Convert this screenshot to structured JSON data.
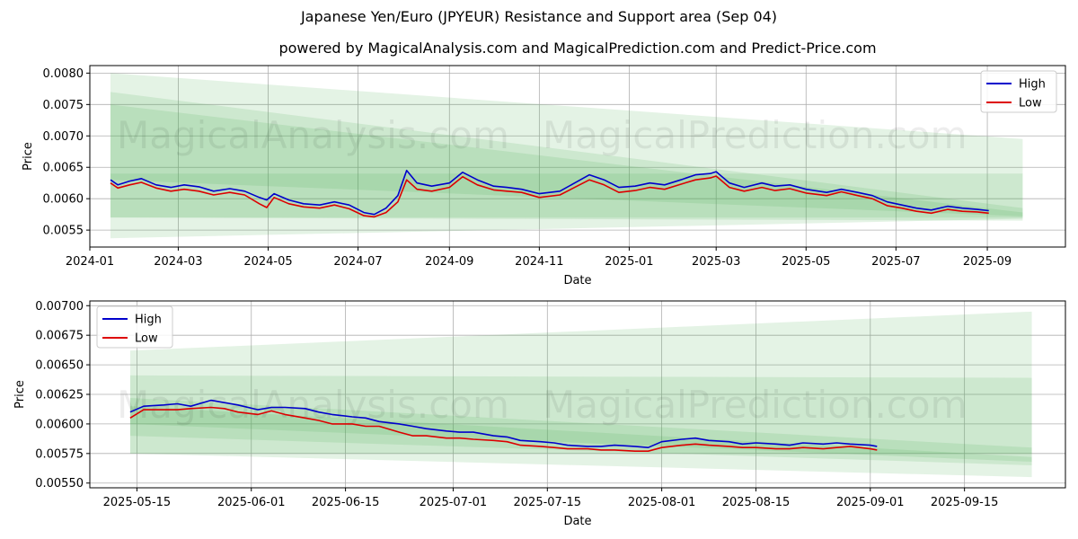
{
  "figure": {
    "title": "Japanese Yen/Euro (JPYEUR) Resistance and Support area (Sep 04)",
    "subtitle": "powered by MagicalAnalysis.com and MagicalPrediction.com and Predict-Price.com",
    "watermarks": [
      "MagicalAnalysis.com",
      "MagicalPrediction.com"
    ],
    "colors": {
      "high": "#0000cc",
      "low": "#dd0000",
      "band": "#4caf50",
      "grid": "#b0b0b0"
    }
  },
  "chart_data": [
    {
      "type": "line",
      "xlabel": "Date",
      "ylabel": "Price",
      "xlim": [
        "2024-01-01",
        "2025-10-24"
      ],
      "ylim": [
        0.00523,
        0.00812
      ],
      "xticks": [
        "2024-01",
        "2024-03",
        "2024-05",
        "2024-07",
        "2024-09",
        "2024-11",
        "2025-01",
        "2025-03",
        "2025-05",
        "2025-07",
        "2025-09"
      ],
      "yticks": [
        "0.0055",
        "0.0060",
        "0.0065",
        "0.0070",
        "0.0075",
        "0.0080"
      ],
      "legend": {
        "position": "top-right",
        "entries": [
          "High",
          "Low"
        ]
      },
      "grid": true,
      "bands": [
        {
          "x": [
            "2024-01-15",
            "2025-09-25"
          ],
          "top": [
            0.008,
            0.00695
          ],
          "bottom": [
            0.00537,
            0.00568
          ]
        },
        {
          "x": [
            "2024-01-15",
            "2025-09-25"
          ],
          "top": [
            0.0077,
            0.00585
          ],
          "bottom": [
            0.0057,
            0.00565
          ]
        },
        {
          "x": [
            "2024-01-15",
            "2025-09-25"
          ],
          "top": [
            0.0075,
            0.00578
          ],
          "bottom": [
            0.0063,
            0.00572
          ]
        },
        {
          "x": [
            "2024-01-15",
            "2025-09-25"
          ],
          "top": [
            0.0064,
            0.0064
          ],
          "bottom": [
            0.0057,
            0.0057
          ]
        }
      ],
      "series": [
        {
          "name": "High",
          "x": [
            "2024-01-15",
            "2024-01-20",
            "2024-01-28",
            "2024-02-05",
            "2024-02-15",
            "2024-02-25",
            "2024-03-05",
            "2024-03-15",
            "2024-03-25",
            "2024-04-05",
            "2024-04-15",
            "2024-04-25",
            "2024-04-30",
            "2024-05-05",
            "2024-05-15",
            "2024-05-25",
            "2024-06-05",
            "2024-06-15",
            "2024-06-25",
            "2024-07-05",
            "2024-07-12",
            "2024-07-20",
            "2024-07-28",
            "2024-08-03",
            "2024-08-10",
            "2024-08-20",
            "2024-09-01",
            "2024-09-10",
            "2024-09-20",
            "2024-10-01",
            "2024-10-10",
            "2024-10-20",
            "2024-11-01",
            "2024-11-15",
            "2024-11-25",
            "2024-12-05",
            "2024-12-15",
            "2024-12-25",
            "2025-01-05",
            "2025-01-15",
            "2025-01-25",
            "2025-02-05",
            "2025-02-15",
            "2025-02-25",
            "2025-03-01",
            "2025-03-10",
            "2025-03-20",
            "2025-04-01",
            "2025-04-10",
            "2025-04-20",
            "2025-05-01",
            "2025-05-15",
            "2025-05-25",
            "2025-06-05",
            "2025-06-15",
            "2025-06-25",
            "2025-07-05",
            "2025-07-15",
            "2025-07-25",
            "2025-08-05",
            "2025-08-15",
            "2025-08-25",
            "2025-09-02"
          ],
          "values": [
            0.0063,
            0.00622,
            0.00628,
            0.00632,
            0.00622,
            0.00618,
            0.00622,
            0.00619,
            0.00612,
            0.00616,
            0.00612,
            0.00602,
            0.00598,
            0.00608,
            0.00598,
            0.00592,
            0.0059,
            0.00595,
            0.0059,
            0.00578,
            0.00575,
            0.00585,
            0.00605,
            0.00645,
            0.00625,
            0.0062,
            0.00625,
            0.00642,
            0.0063,
            0.0062,
            0.00618,
            0.00615,
            0.00608,
            0.00612,
            0.00625,
            0.00638,
            0.0063,
            0.00618,
            0.0062,
            0.00625,
            0.00622,
            0.0063,
            0.00638,
            0.0064,
            0.00643,
            0.00625,
            0.00618,
            0.00625,
            0.0062,
            0.00622,
            0.00615,
            0.0061,
            0.00615,
            0.0061,
            0.00605,
            0.00595,
            0.0059,
            0.00585,
            0.00582,
            0.00588,
            0.00585,
            0.00583,
            0.00581
          ]
        },
        {
          "name": "Low",
          "x": [
            "2024-01-15",
            "2024-01-20",
            "2024-01-28",
            "2024-02-05",
            "2024-02-15",
            "2024-02-25",
            "2024-03-05",
            "2024-03-15",
            "2024-03-25",
            "2024-04-05",
            "2024-04-15",
            "2024-04-25",
            "2024-04-30",
            "2024-05-05",
            "2024-05-15",
            "2024-05-25",
            "2024-06-05",
            "2024-06-15",
            "2024-06-25",
            "2024-07-05",
            "2024-07-12",
            "2024-07-20",
            "2024-07-28",
            "2024-08-03",
            "2024-08-10",
            "2024-08-20",
            "2024-09-01",
            "2024-09-10",
            "2024-09-20",
            "2024-10-01",
            "2024-10-10",
            "2024-10-20",
            "2024-11-01",
            "2024-11-15",
            "2024-11-25",
            "2024-12-05",
            "2024-12-15",
            "2024-12-25",
            "2025-01-05",
            "2025-01-15",
            "2025-01-25",
            "2025-02-05",
            "2025-02-15",
            "2025-02-25",
            "2025-03-01",
            "2025-03-10",
            "2025-03-20",
            "2025-04-01",
            "2025-04-10",
            "2025-04-20",
            "2025-05-01",
            "2025-05-15",
            "2025-05-25",
            "2025-06-05",
            "2025-06-15",
            "2025-06-25",
            "2025-07-05",
            "2025-07-15",
            "2025-07-25",
            "2025-08-05",
            "2025-08-15",
            "2025-08-25",
            "2025-09-02"
          ],
          "values": [
            0.00625,
            0.00617,
            0.00622,
            0.00626,
            0.00617,
            0.00612,
            0.00615,
            0.00612,
            0.00606,
            0.0061,
            0.00606,
            0.00592,
            0.00586,
            0.00602,
            0.00592,
            0.00587,
            0.00585,
            0.0059,
            0.00584,
            0.00573,
            0.00571,
            0.00578,
            0.00595,
            0.0063,
            0.00615,
            0.00612,
            0.00618,
            0.00635,
            0.00622,
            0.00614,
            0.00612,
            0.0061,
            0.00602,
            0.00606,
            0.00618,
            0.0063,
            0.00622,
            0.0061,
            0.00613,
            0.00618,
            0.00615,
            0.00623,
            0.0063,
            0.00633,
            0.00636,
            0.00618,
            0.00612,
            0.00618,
            0.00613,
            0.00616,
            0.00609,
            0.00605,
            0.00611,
            0.00605,
            0.006,
            0.00589,
            0.00585,
            0.0058,
            0.00577,
            0.00583,
            0.0058,
            0.00579,
            0.00577
          ]
        }
      ]
    },
    {
      "type": "line",
      "xlabel": "Date",
      "ylabel": "Price",
      "xlim": [
        "2025-05-08",
        "2025-09-30"
      ],
      "ylim": [
        0.00546,
        0.00704
      ],
      "xticks": [
        "2025-05-15",
        "2025-06-01",
        "2025-06-15",
        "2025-07-01",
        "2025-07-15",
        "2025-08-01",
        "2025-08-15",
        "2025-09-01",
        "2025-09-15"
      ],
      "yticks": [
        "0.00550",
        "0.00575",
        "0.00600",
        "0.00625",
        "0.00650",
        "0.00675",
        "0.00700"
      ],
      "legend": {
        "position": "top-left",
        "entries": [
          "High",
          "Low"
        ]
      },
      "grid": true,
      "bands": [
        {
          "x": [
            "2025-05-14",
            "2025-09-25"
          ],
          "top": [
            0.00662,
            0.00695
          ],
          "bottom": [
            0.00575,
            0.00555
          ]
        },
        {
          "x": [
            "2025-05-14",
            "2025-09-25"
          ],
          "top": [
            0.00641,
            0.00639
          ],
          "bottom": [
            0.00575,
            0.00575
          ]
        },
        {
          "x": [
            "2025-05-14",
            "2025-09-25"
          ],
          "top": [
            0.00622,
            0.0058
          ],
          "bottom": [
            0.0059,
            0.00565
          ]
        },
        {
          "x": [
            "2025-05-14",
            "2025-09-25"
          ],
          "top": [
            0.00615,
            0.00572
          ],
          "bottom": [
            0.006,
            0.00568
          ]
        }
      ],
      "series": [
        {
          "name": "High",
          "x": [
            "2025-05-14",
            "2025-05-16",
            "2025-05-19",
            "2025-05-21",
            "2025-05-23",
            "2025-05-26",
            "2025-05-28",
            "2025-05-30",
            "2025-06-02",
            "2025-06-04",
            "2025-06-06",
            "2025-06-09",
            "2025-06-11",
            "2025-06-13",
            "2025-06-16",
            "2025-06-18",
            "2025-06-20",
            "2025-06-23",
            "2025-06-25",
            "2025-06-27",
            "2025-06-30",
            "2025-07-02",
            "2025-07-04",
            "2025-07-07",
            "2025-07-09",
            "2025-07-11",
            "2025-07-14",
            "2025-07-16",
            "2025-07-18",
            "2025-07-21",
            "2025-07-23",
            "2025-07-25",
            "2025-07-28",
            "2025-07-30",
            "2025-08-01",
            "2025-08-04",
            "2025-08-06",
            "2025-08-08",
            "2025-08-11",
            "2025-08-13",
            "2025-08-15",
            "2025-08-18",
            "2025-08-20",
            "2025-08-22",
            "2025-08-25",
            "2025-08-27",
            "2025-08-29",
            "2025-09-01",
            "2025-09-02"
          ],
          "values": [
            0.0061,
            0.00615,
            0.00616,
            0.00617,
            0.00615,
            0.0062,
            0.00618,
            0.00616,
            0.00612,
            0.00614,
            0.00614,
            0.00613,
            0.0061,
            0.00608,
            0.00606,
            0.00605,
            0.00602,
            0.006,
            0.00598,
            0.00596,
            0.00594,
            0.00593,
            0.00593,
            0.0059,
            0.00589,
            0.00586,
            0.00585,
            0.00584,
            0.00582,
            0.00581,
            0.00581,
            0.00582,
            0.00581,
            0.0058,
            0.00585,
            0.00587,
            0.00588,
            0.00586,
            0.00585,
            0.00583,
            0.00584,
            0.00583,
            0.00582,
            0.00584,
            0.00583,
            0.00584,
            0.00583,
            0.00582,
            0.00581
          ]
        },
        {
          "name": "Low",
          "x": [
            "2025-05-14",
            "2025-05-16",
            "2025-05-19",
            "2025-05-21",
            "2025-05-23",
            "2025-05-26",
            "2025-05-28",
            "2025-05-30",
            "2025-06-02",
            "2025-06-04",
            "2025-06-06",
            "2025-06-09",
            "2025-06-11",
            "2025-06-13",
            "2025-06-16",
            "2025-06-18",
            "2025-06-20",
            "2025-06-23",
            "2025-06-25",
            "2025-06-27",
            "2025-06-30",
            "2025-07-02",
            "2025-07-04",
            "2025-07-07",
            "2025-07-09",
            "2025-07-11",
            "2025-07-14",
            "2025-07-16",
            "2025-07-18",
            "2025-07-21",
            "2025-07-23",
            "2025-07-25",
            "2025-07-28",
            "2025-07-30",
            "2025-08-01",
            "2025-08-04",
            "2025-08-06",
            "2025-08-08",
            "2025-08-11",
            "2025-08-13",
            "2025-08-15",
            "2025-08-18",
            "2025-08-20",
            "2025-08-22",
            "2025-08-25",
            "2025-08-27",
            "2025-08-29",
            "2025-09-01",
            "2025-09-02"
          ],
          "values": [
            0.00605,
            0.00612,
            0.00612,
            0.00612,
            0.00613,
            0.00614,
            0.00613,
            0.0061,
            0.00608,
            0.00611,
            0.00608,
            0.00605,
            0.00603,
            0.006,
            0.006,
            0.00598,
            0.00598,
            0.00593,
            0.0059,
            0.0059,
            0.00588,
            0.00588,
            0.00587,
            0.00586,
            0.00585,
            0.00582,
            0.00581,
            0.0058,
            0.00579,
            0.00579,
            0.00578,
            0.00578,
            0.00577,
            0.00577,
            0.0058,
            0.00582,
            0.00583,
            0.00582,
            0.00581,
            0.0058,
            0.0058,
            0.00579,
            0.00579,
            0.0058,
            0.00579,
            0.0058,
            0.00581,
            0.00579,
            0.00578
          ]
        }
      ]
    }
  ]
}
